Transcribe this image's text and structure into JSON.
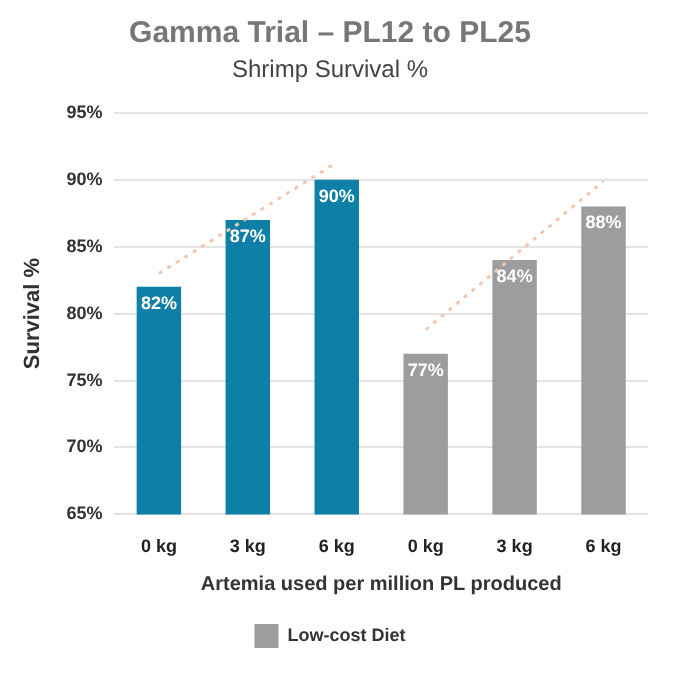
{
  "chart_data": {
    "type": "bar",
    "title": "Gamma Trial – PL12 to PL25",
    "subtitle": "Shrimp Survival %",
    "xlabel": "Artemia used per million PL produced",
    "ylabel": "Survival %",
    "categories": [
      "0 kg",
      "3 kg",
      "6 kg",
      "0 kg",
      "3 kg",
      "6 kg"
    ],
    "series": [
      {
        "color": "#0e7fa6",
        "values": [
          82,
          87,
          90,
          null,
          null,
          null
        ],
        "value_labels": [
          "82%",
          "87%",
          "90%",
          null,
          null,
          null
        ]
      },
      {
        "name": "Low-cost Diet",
        "color": "#9b9d9f",
        "values": [
          null,
          null,
          null,
          77,
          84,
          88
        ],
        "value_labels": [
          null,
          null,
          null,
          "77%",
          "84%",
          "88%"
        ]
      },
      {
        "type": "line",
        "color": "#f0c8b0",
        "line_style": "dotted",
        "values": [
          83.0,
          null,
          91.3,
          null,
          null,
          null
        ]
      },
      {
        "type": "line",
        "color": "#f0c8b0",
        "line_style": "dotted",
        "values": [
          null,
          null,
          null,
          78.8,
          null,
          89.9
        ]
      }
    ],
    "ylim": [
      65,
      95
    ],
    "yticks": [
      {
        "value": 65,
        "label": "65%"
      },
      {
        "value": 70,
        "label": "70%"
      },
      {
        "value": 75,
        "label": "75%"
      },
      {
        "value": 80,
        "label": "80%"
      },
      {
        "value": 85,
        "label": "85%"
      },
      {
        "value": 90,
        "label": "90%"
      },
      {
        "value": 95,
        "label": "95%"
      }
    ],
    "grid": "y",
    "legend": "bottom"
  }
}
